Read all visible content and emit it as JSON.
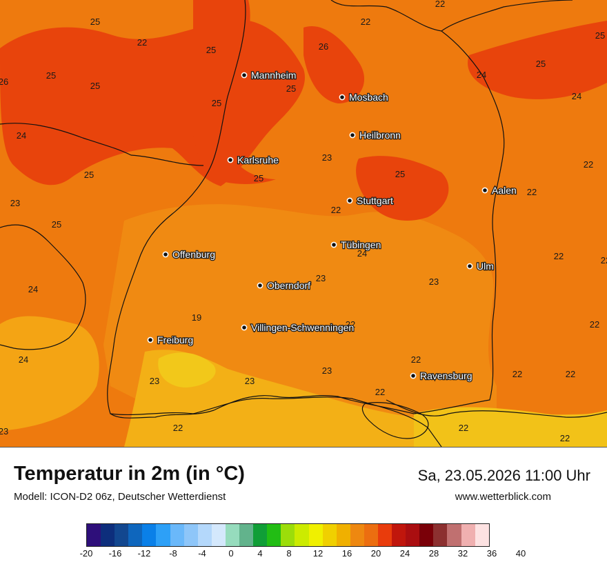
{
  "map": {
    "cities": [
      {
        "name": "Mannheim"
      },
      {
        "name": "Mosbach"
      },
      {
        "name": "Heilbronn"
      },
      {
        "name": "Karlsruhe"
      },
      {
        "name": "Stuttgart"
      },
      {
        "name": "Aalen"
      },
      {
        "name": "Tübingen"
      },
      {
        "name": "Offenburg"
      },
      {
        "name": "Ulm"
      },
      {
        "name": "Oberndorf"
      },
      {
        "name": "Villingen-Schwenningen"
      },
      {
        "name": "Freiburg"
      },
      {
        "name": "Ravensburg"
      }
    ],
    "temperatures": [
      "22",
      "25",
      "22",
      "26",
      "22",
      "25",
      "25",
      "26",
      "25",
      "25",
      "25",
      "24",
      "24",
      "25",
      "24",
      "25",
      "23",
      "22",
      "25",
      "25",
      "23",
      "22",
      "25",
      "22",
      "24",
      "23",
      "25",
      "24",
      "22",
      "23",
      "23",
      "19",
      "22",
      "22",
      "24",
      "22",
      "23",
      "23",
      "23",
      "22",
      "22",
      "22",
      "22",
      "22",
      "23",
      "22",
      "22",
      "22"
    ]
  },
  "footer": {
    "title": "Temperatur in 2m (in °C)",
    "model": "Modell: ICON-D2 06z, Deutscher Wetterdienst",
    "datetime": "Sa, 23.05.2026 11:00 Uhr",
    "website": "www.wetterblick.com"
  },
  "legend": {
    "colors": [
      "#2e0f7a",
      "#0d2e7c",
      "#12478f",
      "#0e66bd",
      "#0a80e8",
      "#2da0f7",
      "#6ab8fa",
      "#8ec6f9",
      "#b4d8fb",
      "#d4e8fc",
      "#96dcbd",
      "#62b38c",
      "#109e37",
      "#22bd14",
      "#9cdd0a",
      "#cceb00",
      "#f0f000",
      "#f0d000",
      "#f0b000",
      "#ee8810",
      "#ec6e10",
      "#e93c0c",
      "#c0160c",
      "#aa0e10",
      "#7a0008",
      "#8c3030",
      "#c07070",
      "#f0b0b0",
      "#fde2e2"
    ],
    "ticks": [
      "-20",
      "-16",
      "-12",
      "-8",
      "-4",
      "0",
      "4",
      "8",
      "12",
      "16",
      "20",
      "24",
      "28",
      "32",
      "36",
      "40"
    ]
  }
}
